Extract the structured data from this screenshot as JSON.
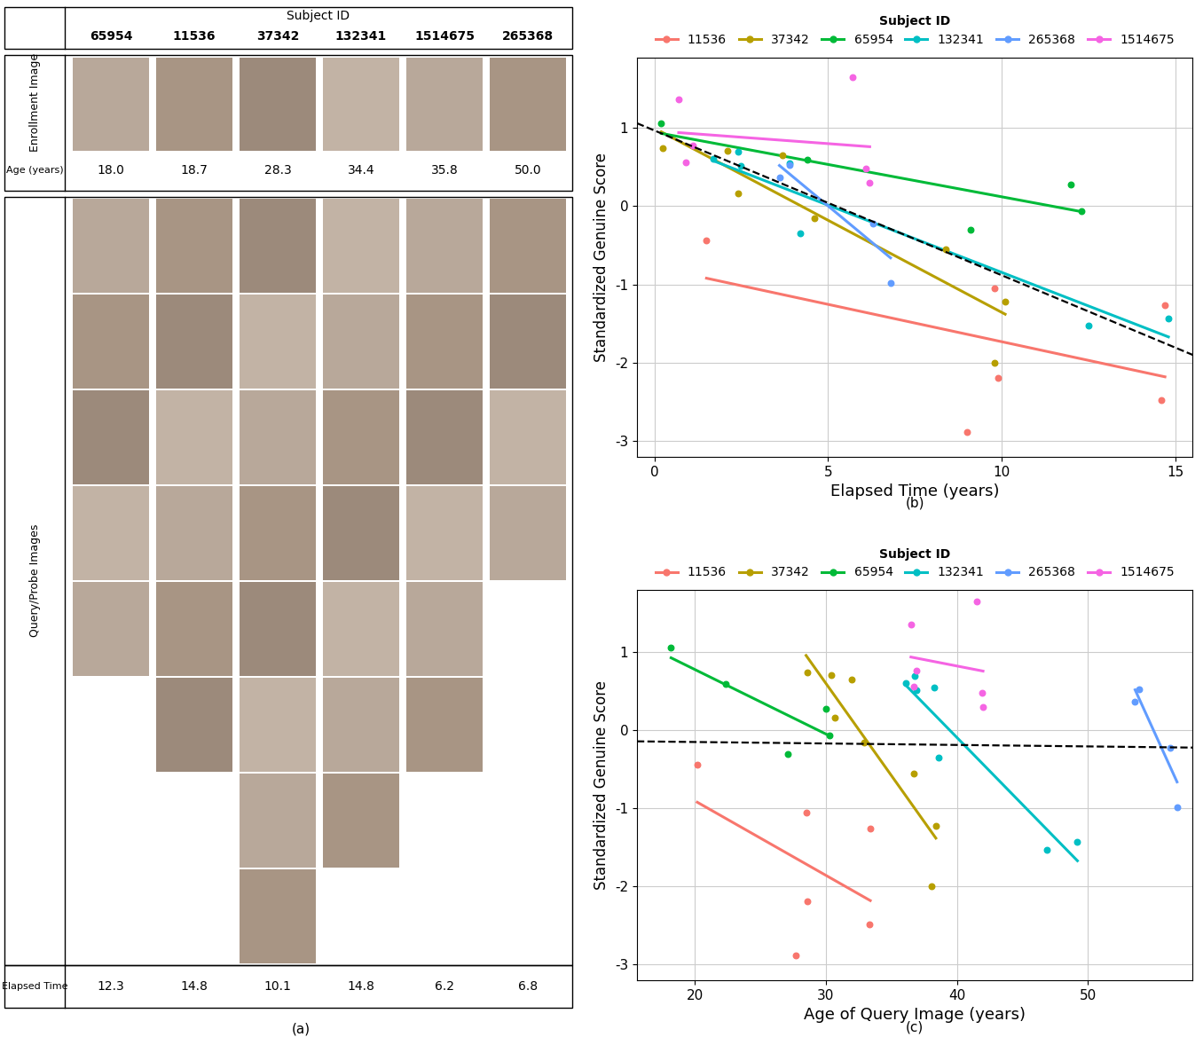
{
  "panel_a": {
    "caption": "(a)",
    "header": "Subject ID",
    "subject_ids": [
      "65954",
      "11536",
      "37342",
      "132341",
      "1514675",
      "265368"
    ],
    "enrollment_label": "Enrollment Image",
    "age_label": "Age (years)",
    "ages": [
      18.0,
      18.7,
      28.3,
      34.4,
      35.8,
      50.0
    ],
    "query_label": "Query/Probe Images",
    "query_image_counts": [
      5,
      6,
      8,
      7,
      6,
      4
    ],
    "elapsed_label": "Elapsed Time",
    "elapsed": [
      12.3,
      14.8,
      10.1,
      14.8,
      6.2,
      6.8
    ]
  },
  "chart_data": [
    {
      "type": "scatter",
      "caption": "(b)",
      "x_label": "Elapsed Time (years)",
      "y_label": "Standardized Genuine Score",
      "xlim": [
        -0.5,
        15.5
      ],
      "ylim": [
        -3.2,
        1.9
      ],
      "xticks": [
        0,
        5,
        10,
        15
      ],
      "yticks": [
        -3,
        -2,
        -1,
        0,
        1
      ],
      "grid": true,
      "legend": "top",
      "legend_title": "Subject ID",
      "series": [
        {
          "name": "11536",
          "color": "#F8766D",
          "x": [
            1.5,
            9.8,
            9.9,
            9.0,
            14.6,
            14.7
          ],
          "values": [
            -0.44,
            -1.05,
            -2.19,
            -2.88,
            -2.48,
            -1.26
          ],
          "fit": {
            "x": [
              1.5,
              14.7
            ],
            "values": [
              -0.92,
              -2.18
            ]
          }
        },
        {
          "name": "37342",
          "color": "#B79F00",
          "x": [
            0.25,
            2.1,
            2.4,
            3.7,
            4.6,
            8.4,
            9.8,
            10.1
          ],
          "values": [
            0.74,
            0.71,
            0.16,
            0.65,
            -0.15,
            -0.55,
            -2.0,
            -1.22
          ],
          "fit": {
            "x": [
              0.2,
              10.1
            ],
            "values": [
              0.95,
              -1.38
            ]
          }
        },
        {
          "name": "65954",
          "color": "#00BA38",
          "x": [
            0.2,
            4.4,
            9.1,
            12.0,
            12.3
          ],
          "values": [
            1.06,
            0.59,
            -0.3,
            0.28,
            -0.06
          ],
          "fit": {
            "x": [
              0.2,
              12.3
            ],
            "values": [
              0.93,
              -0.07
            ]
          }
        },
        {
          "name": "132341",
          "color": "#00BFC4",
          "x": [
            1.7,
            2.4,
            2.5,
            3.9,
            4.2,
            12.5,
            14.8
          ],
          "values": [
            0.61,
            0.7,
            0.52,
            0.55,
            -0.35,
            -1.53,
            -1.43
          ],
          "fit": {
            "x": [
              1.7,
              14.8
            ],
            "values": [
              0.58,
              -1.67
            ]
          }
        },
        {
          "name": "265368",
          "color": "#619CFF",
          "x": [
            3.6,
            3.9,
            6.3,
            6.8
          ],
          "values": [
            0.37,
            0.53,
            -0.22,
            -0.98
          ],
          "fit": {
            "x": [
              3.6,
              6.8
            ],
            "values": [
              0.52,
              -0.66
            ]
          }
        },
        {
          "name": "1514675",
          "color": "#F564E3",
          "x": [
            0.7,
            0.9,
            1.1,
            5.7,
            6.1,
            6.2
          ],
          "values": [
            1.36,
            0.56,
            0.77,
            1.65,
            0.48,
            0.3
          ],
          "fit": {
            "x": [
              0.7,
              6.2
            ],
            "values": [
              0.94,
              0.76
            ]
          }
        }
      ],
      "overall_fit": {
        "x": [
          -0.5,
          15.5
        ],
        "values": [
          1.06,
          -1.9
        ],
        "color": "#000000",
        "line_style": "dashed"
      }
    },
    {
      "type": "scatter",
      "caption": "(c)",
      "x_label": "Age of Query Image (years)",
      "y_label": "Standardized Genuine Score",
      "xlim": [
        15.6,
        58.0
      ],
      "ylim": [
        -3.2,
        1.8
      ],
      "xticks": [
        20,
        30,
        40,
        50
      ],
      "yticks": [
        -3,
        -2,
        -1,
        0,
        1
      ],
      "grid": true,
      "legend": "top",
      "legend_title": "Subject ID",
      "series": [
        {
          "name": "11536",
          "color": "#F8766D",
          "x": [
            20.2,
            28.5,
            28.6,
            27.7,
            33.3,
            33.4
          ],
          "values": [
            -0.44,
            -1.05,
            -2.19,
            -2.88,
            -2.48,
            -1.26
          ],
          "fit": {
            "x": [
              20.2,
              33.4
            ],
            "values": [
              -0.92,
              -2.18
            ]
          }
        },
        {
          "name": "37342",
          "color": "#B79F00",
          "x": [
            28.6,
            30.4,
            30.7,
            32.0,
            32.9,
            36.7,
            38.1,
            38.4
          ],
          "values": [
            0.74,
            0.71,
            0.16,
            0.65,
            -0.15,
            -0.55,
            -2.0,
            -1.22
          ],
          "fit": {
            "x": [
              28.5,
              38.4
            ],
            "values": [
              0.96,
              -1.38
            ]
          }
        },
        {
          "name": "65954",
          "color": "#00BA38",
          "x": [
            18.2,
            22.4,
            27.1,
            30.0,
            30.3
          ],
          "values": [
            1.06,
            0.59,
            -0.3,
            0.28,
            -0.06
          ],
          "fit": {
            "x": [
              18.2,
              30.3
            ],
            "values": [
              0.93,
              -0.07
            ]
          }
        },
        {
          "name": "132341",
          "color": "#00BFC4",
          "x": [
            36.1,
            36.8,
            36.9,
            38.3,
            38.6,
            46.9,
            49.2
          ],
          "values": [
            0.61,
            0.7,
            0.52,
            0.55,
            -0.35,
            -1.53,
            -1.43
          ],
          "fit": {
            "x": [
              36.1,
              49.2
            ],
            "values": [
              0.58,
              -1.67
            ]
          }
        },
        {
          "name": "265368",
          "color": "#619CFF",
          "x": [
            53.6,
            53.9,
            56.3,
            56.8
          ],
          "values": [
            0.37,
            0.53,
            -0.22,
            -0.98
          ],
          "fit": {
            "x": [
              53.6,
              56.8
            ],
            "values": [
              0.52,
              -0.66
            ]
          }
        },
        {
          "name": "1514675",
          "color": "#F564E3",
          "x": [
            36.5,
            36.7,
            36.9,
            41.5,
            41.9,
            42.0
          ],
          "values": [
            1.36,
            0.56,
            0.77,
            1.65,
            0.48,
            0.3
          ],
          "fit": {
            "x": [
              36.5,
              42.0
            ],
            "values": [
              0.94,
              0.76
            ]
          }
        }
      ],
      "overall_fit": {
        "x": [
          15.6,
          58.0
        ],
        "values": [
          -0.14,
          -0.22
        ],
        "color": "#000000",
        "line_style": "dashed"
      }
    }
  ]
}
